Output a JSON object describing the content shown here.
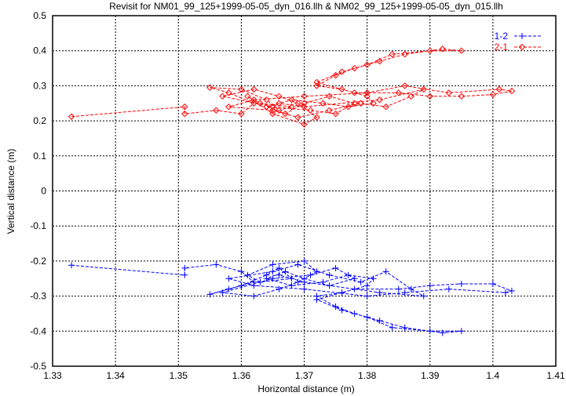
{
  "chart_data": {
    "type": "line",
    "title": "Revisit for NM01_99_125+1999-05-05_dyn_016.llh & NM02_99_125+1999-05-05_dyn_015.llh",
    "xlabel": "Horizontal distance (m)",
    "ylabel": "Vertical distance (m)",
    "xlim": [
      1.33,
      1.41
    ],
    "ylim": [
      -0.5,
      0.5
    ],
    "xticks": [
      "1.33",
      "1.34",
      "1.35",
      "1.36",
      "1.37",
      "1.38",
      "1.39",
      "1.4",
      "1.41"
    ],
    "yticks": [
      "-0.5",
      "-0.4",
      "-0.3",
      "-0.2",
      "-0.1",
      "0",
      "0.1",
      "0.2",
      "0.3",
      "0.4",
      "0.5"
    ],
    "grid": true,
    "legend_position": "top-right",
    "series": [
      {
        "name": "1-2",
        "color": "#0000ff",
        "marker": "plus",
        "points": [
          [
            1.333,
            -0.212
          ],
          [
            1.351,
            -0.24
          ],
          [
            1.351,
            -0.22
          ],
          [
            1.356,
            -0.21
          ],
          [
            1.36,
            -0.23
          ],
          [
            1.362,
            -0.26
          ],
          [
            1.358,
            -0.28
          ],
          [
            1.355,
            -0.295
          ],
          [
            1.36,
            -0.27
          ],
          [
            1.364,
            -0.24
          ],
          [
            1.366,
            -0.22
          ],
          [
            1.368,
            -0.25
          ],
          [
            1.363,
            -0.26
          ],
          [
            1.361,
            -0.24
          ],
          [
            1.365,
            -0.21
          ],
          [
            1.37,
            -0.2
          ],
          [
            1.372,
            -0.23
          ],
          [
            1.369,
            -0.26
          ],
          [
            1.366,
            -0.28
          ],
          [
            1.362,
            -0.3
          ],
          [
            1.357,
            -0.29
          ],
          [
            1.365,
            -0.25
          ],
          [
            1.371,
            -0.24
          ],
          [
            1.375,
            -0.22
          ],
          [
            1.378,
            -0.25
          ],
          [
            1.374,
            -0.27
          ],
          [
            1.37,
            -0.25
          ],
          [
            1.367,
            -0.23
          ],
          [
            1.364,
            -0.25
          ],
          [
            1.368,
            -0.27
          ],
          [
            1.373,
            -0.26
          ],
          [
            1.377,
            -0.24
          ],
          [
            1.381,
            -0.25
          ],
          [
            1.38,
            -0.27
          ],
          [
            1.376,
            -0.29
          ],
          [
            1.372,
            -0.3
          ],
          [
            1.375,
            -0.33
          ],
          [
            1.378,
            -0.35
          ],
          [
            1.382,
            -0.37
          ],
          [
            1.386,
            -0.39
          ],
          [
            1.392,
            -0.405
          ],
          [
            1.395,
            -0.4
          ],
          [
            1.39,
            -0.4
          ],
          [
            1.384,
            -0.39
          ],
          [
            1.38,
            -0.36
          ],
          [
            1.376,
            -0.34
          ],
          [
            1.372,
            -0.31
          ],
          [
            1.378,
            -0.28
          ],
          [
            1.385,
            -0.28
          ],
          [
            1.39,
            -0.27
          ],
          [
            1.395,
            -0.265
          ],
          [
            1.4,
            -0.265
          ],
          [
            1.403,
            -0.285
          ],
          [
            1.402,
            -0.29
          ],
          [
            1.393,
            -0.28
          ],
          [
            1.386,
            -0.29
          ],
          [
            1.38,
            -0.3
          ],
          [
            1.37,
            -0.28
          ],
          [
            1.362,
            -0.27
          ],
          [
            1.358,
            -0.25
          ],
          [
            1.365,
            -0.23
          ],
          [
            1.369,
            -0.21
          ],
          [
            1.374,
            -0.24
          ],
          [
            1.379,
            -0.26
          ],
          [
            1.383,
            -0.23
          ],
          [
            1.387,
            -0.28
          ],
          [
            1.389,
            -0.3
          ],
          [
            1.382,
            -0.29
          ],
          [
            1.37,
            -0.26
          ],
          [
            1.366,
            -0.24
          ]
        ]
      },
      {
        "name": "2-1",
        "color": "#ff0000",
        "marker": "diamond",
        "points": [
          [
            1.333,
            0.212
          ],
          [
            1.351,
            0.24
          ],
          [
            1.351,
            0.22
          ],
          [
            1.356,
            0.23
          ],
          [
            1.36,
            0.22
          ],
          [
            1.362,
            0.25
          ],
          [
            1.358,
            0.28
          ],
          [
            1.355,
            0.295
          ],
          [
            1.36,
            0.29
          ],
          [
            1.364,
            0.26
          ],
          [
            1.366,
            0.23
          ],
          [
            1.368,
            0.24
          ],
          [
            1.363,
            0.25
          ],
          [
            1.361,
            0.27
          ],
          [
            1.365,
            0.22
          ],
          [
            1.37,
            0.19
          ],
          [
            1.372,
            0.21
          ],
          [
            1.369,
            0.25
          ],
          [
            1.366,
            0.27
          ],
          [
            1.362,
            0.29
          ],
          [
            1.357,
            0.27
          ],
          [
            1.365,
            0.24
          ],
          [
            1.371,
            0.23
          ],
          [
            1.375,
            0.22
          ],
          [
            1.378,
            0.25
          ],
          [
            1.374,
            0.27
          ],
          [
            1.37,
            0.25
          ],
          [
            1.367,
            0.22
          ],
          [
            1.364,
            0.24
          ],
          [
            1.368,
            0.26
          ],
          [
            1.373,
            0.25
          ],
          [
            1.377,
            0.24
          ],
          [
            1.381,
            0.25
          ],
          [
            1.38,
            0.27
          ],
          [
            1.376,
            0.29
          ],
          [
            1.372,
            0.3
          ],
          [
            1.375,
            0.33
          ],
          [
            1.378,
            0.35
          ],
          [
            1.382,
            0.37
          ],
          [
            1.386,
            0.39
          ],
          [
            1.392,
            0.405
          ],
          [
            1.395,
            0.4
          ],
          [
            1.39,
            0.4
          ],
          [
            1.384,
            0.39
          ],
          [
            1.38,
            0.36
          ],
          [
            1.376,
            0.34
          ],
          [
            1.372,
            0.31
          ],
          [
            1.378,
            0.28
          ],
          [
            1.385,
            0.28
          ],
          [
            1.39,
            0.27
          ],
          [
            1.395,
            0.27
          ],
          [
            1.4,
            0.275
          ],
          [
            1.403,
            0.285
          ],
          [
            1.401,
            0.29
          ],
          [
            1.393,
            0.28
          ],
          [
            1.386,
            0.3
          ],
          [
            1.38,
            0.28
          ],
          [
            1.37,
            0.27
          ],
          [
            1.362,
            0.26
          ],
          [
            1.358,
            0.24
          ],
          [
            1.365,
            0.23
          ],
          [
            1.369,
            0.21
          ],
          [
            1.374,
            0.23
          ],
          [
            1.379,
            0.25
          ],
          [
            1.383,
            0.24
          ],
          [
            1.387,
            0.27
          ],
          [
            1.389,
            0.29
          ],
          [
            1.382,
            0.26
          ],
          [
            1.37,
            0.24
          ],
          [
            1.366,
            0.25
          ]
        ]
      }
    ]
  }
}
